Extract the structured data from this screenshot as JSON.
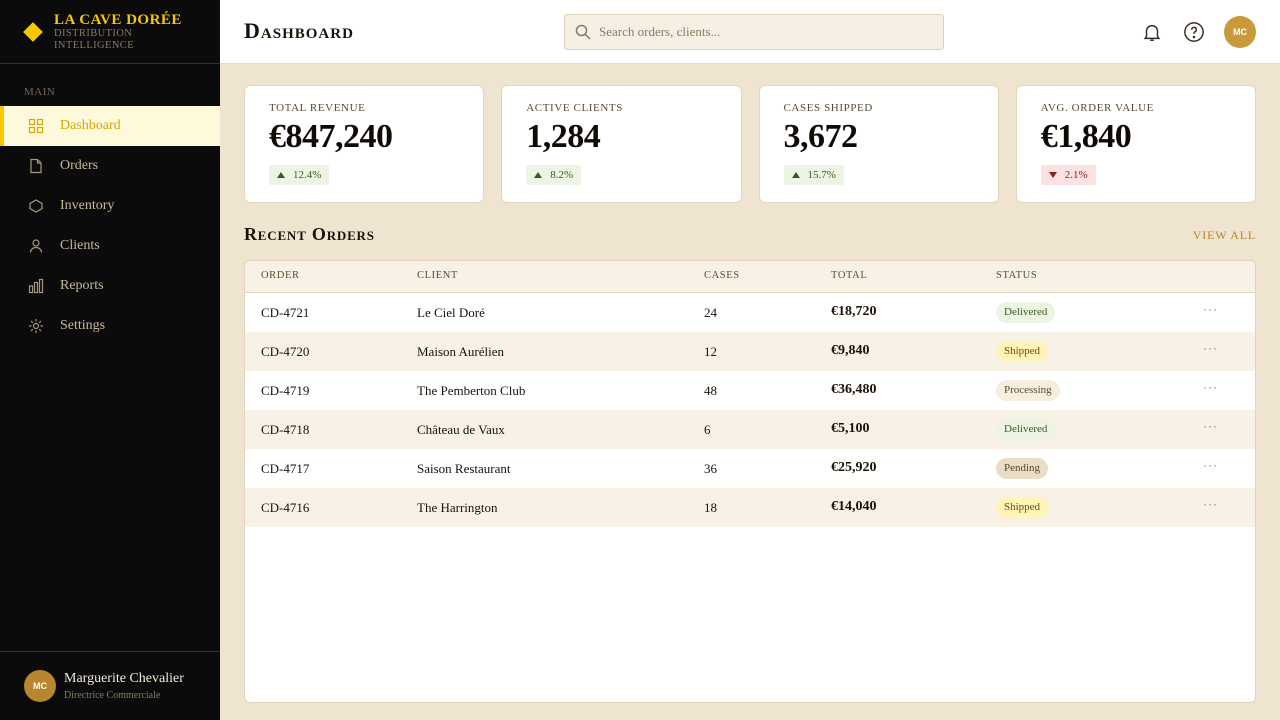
{
  "brand": {
    "name": "LA CAVE DORÉE",
    "sub_line1": "DISTRIBUTION",
    "sub_line2": "INTELLIGENCE",
    "accent": "#f5c800"
  },
  "sidebar": {
    "section_label": "MAIN",
    "items": [
      {
        "label": "Dashboard",
        "icon": "grid-icon",
        "active": true
      },
      {
        "label": "Orders",
        "icon": "document-icon"
      },
      {
        "label": "Inventory",
        "icon": "box-icon"
      },
      {
        "label": "Clients",
        "icon": "user-icon"
      },
      {
        "label": "Reports",
        "icon": "bar-chart-icon"
      },
      {
        "label": "Settings",
        "icon": "gear-icon"
      }
    ],
    "user": {
      "initials": "MC",
      "name": "Marguerite Chevalier",
      "role": "Directrice Commerciale"
    }
  },
  "header": {
    "title": "Dashboard",
    "search_placeholder": "Search orders, clients...",
    "avatar_initials": "MC"
  },
  "stats": [
    {
      "label": "Total Revenue",
      "value": "€847,240",
      "delta": "12.4%",
      "direction": "up"
    },
    {
      "label": "Active Clients",
      "value": "1,284",
      "delta": "8.2%",
      "direction": "up"
    },
    {
      "label": "Cases Shipped",
      "value": "3,672",
      "delta": "15.7%",
      "direction": "up"
    },
    {
      "label": "Avg. Order Value",
      "value": "€1,840",
      "delta": "2.1%",
      "direction": "down"
    }
  ],
  "orders": {
    "title": "Recent Orders",
    "view_all": "View All",
    "columns": [
      "Order",
      "Client",
      "Cases",
      "Total",
      "Status"
    ],
    "rows": [
      {
        "order": "CD-4721",
        "client": "Le Ciel Doré",
        "cases": "24",
        "total": "€18,720",
        "status": "Delivered"
      },
      {
        "order": "CD-4720",
        "client": "Maison Aurélien",
        "cases": "12",
        "total": "€9,840",
        "status": "Shipped"
      },
      {
        "order": "CD-4719",
        "client": "The Pemberton Club",
        "cases": "48",
        "total": "€36,480",
        "status": "Processing"
      },
      {
        "order": "CD-4718",
        "client": "Château de Vaux",
        "cases": "6",
        "total": "€5,100",
        "status": "Delivered"
      },
      {
        "order": "CD-4717",
        "client": "Saison Restaurant",
        "cases": "36",
        "total": "€25,920",
        "status": "Pending"
      },
      {
        "order": "CD-4716",
        "client": "The Harrington",
        "cases": "18",
        "total": "€14,040",
        "status": "Shipped"
      }
    ],
    "row_action": "···"
  }
}
